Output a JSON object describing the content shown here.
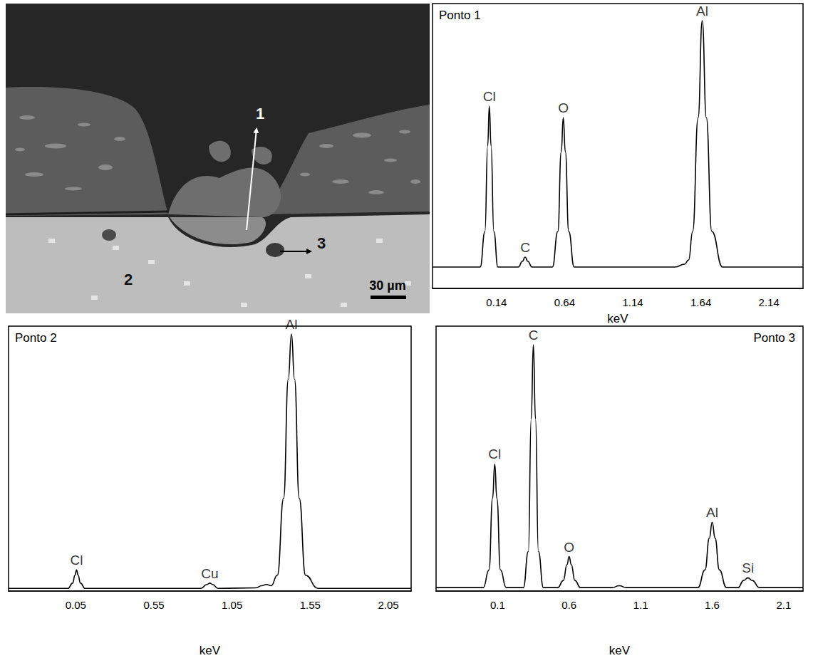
{
  "image": {
    "point_labels": [
      "1",
      "2",
      "3"
    ],
    "scale_bar": "30 µm"
  },
  "chart_data": [
    {
      "type": "line",
      "title": "Ponto 1",
      "x_label": "keV",
      "color": "#000000",
      "grid": false,
      "tick_labels": "x",
      "xlim": [
        -0.33,
        2.39
      ],
      "xticks": [
        0.14,
        0.64,
        1.14,
        1.64,
        2.14
      ],
      "ylim": [
        0,
        100
      ],
      "x": [
        -0.33,
        0.02,
        0.055,
        0.075,
        0.087,
        0.1,
        0.12,
        0.15,
        0.3,
        0.33,
        0.35,
        0.37,
        0.4,
        0.55,
        0.59,
        0.615,
        0.63,
        0.645,
        0.67,
        0.71,
        1.45,
        1.52,
        1.55,
        1.58,
        1.62,
        1.65,
        1.68,
        1.72,
        1.8,
        2.39
      ],
      "values": [
        7.5,
        7.5,
        20,
        50,
        64,
        50,
        20,
        7.5,
        7.5,
        9.5,
        11,
        9.5,
        7.5,
        7.5,
        20,
        48,
        60,
        48,
        20,
        7.5,
        7.5,
        8.5,
        10,
        20,
        60,
        94,
        60,
        20,
        7.5,
        7.5
      ],
      "annotations": [
        {
          "text": "Cl",
          "x": 0.087,
          "y": 64
        },
        {
          "text": "C",
          "x": 0.35,
          "y": 11
        },
        {
          "text": "O",
          "x": 0.63,
          "y": 60
        },
        {
          "text": "Al",
          "x": 1.65,
          "y": 94
        }
      ]
    },
    {
      "type": "line",
      "title": "Ponto 2",
      "x_label": "keV",
      "color": "#000000",
      "grid": false,
      "tick_labels": "x",
      "xlim": [
        -0.38,
        2.196
      ],
      "xticks": [
        0.05,
        0.55,
        1.05,
        1.55,
        2.05
      ],
      "ylim": [
        0,
        100
      ],
      "x": [
        -0.38,
        0.0,
        0.03,
        0.045,
        0.055,
        0.065,
        0.08,
        0.11,
        0.85,
        0.89,
        0.908,
        0.925,
        0.96,
        1.2,
        1.24,
        1.27,
        1.3,
        1.34,
        1.38,
        1.41,
        1.43,
        1.45,
        1.48,
        1.52,
        1.6,
        2.196
      ],
      "values": [
        1,
        1,
        3,
        6,
        8,
        6,
        3,
        1,
        1,
        2.5,
        3,
        2.5,
        1,
        1.2,
        2,
        2.5,
        2,
        6,
        35,
        80,
        97,
        80,
        35,
        6,
        1,
        1
      ],
      "annotations": [
        {
          "text": "Cl",
          "x": 0.055,
          "y": 8
        },
        {
          "text": "Cu",
          "x": 0.908,
          "y": 3
        },
        {
          "text": "Al",
          "x": 1.43,
          "y": 97
        }
      ]
    },
    {
      "type": "line",
      "title": "Ponto 3",
      "x_label": "keV",
      "color": "#000000",
      "grid": false,
      "tick_labels": "x",
      "xlim": [
        -0.33,
        2.235
      ],
      "xticks": [
        0.1,
        0.6,
        1.1,
        1.6,
        2.1
      ],
      "ylim": [
        0,
        100
      ],
      "x": [
        -0.33,
        0.0,
        0.04,
        0.065,
        0.08,
        0.095,
        0.12,
        0.16,
        0.28,
        0.315,
        0.335,
        0.35,
        0.365,
        0.385,
        0.42,
        0.52,
        0.56,
        0.585,
        0.6,
        0.615,
        0.64,
        0.68,
        0.9,
        0.95,
        1.0,
        1.5,
        1.55,
        1.58,
        1.6,
        1.62,
        1.65,
        1.7,
        1.78,
        1.82,
        1.85,
        1.88,
        1.93,
        2.235
      ],
      "values": [
        1.3,
        1.3,
        8,
        35,
        48,
        35,
        8,
        1.3,
        1.3,
        15,
        65,
        93,
        65,
        15,
        1.3,
        1.3,
        4,
        10,
        13,
        10,
        4,
        1.3,
        1.3,
        2,
        1.3,
        1.3,
        8,
        20,
        26,
        20,
        8,
        1.3,
        1.3,
        4,
        5,
        4,
        1.3,
        1.3
      ],
      "annotations": [
        {
          "text": "Cl",
          "x": 0.08,
          "y": 48
        },
        {
          "text": "C",
          "x": 0.35,
          "y": 93
        },
        {
          "text": "O",
          "x": 0.6,
          "y": 13
        },
        {
          "text": "Al",
          "x": 1.6,
          "y": 26
        },
        {
          "text": "Si",
          "x": 1.85,
          "y": 5
        }
      ]
    }
  ]
}
